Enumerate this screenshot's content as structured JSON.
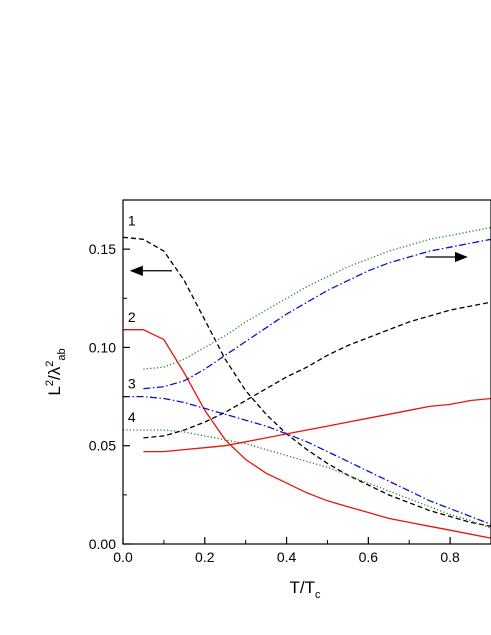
{
  "chart_data": {
    "type": "line",
    "xlabel": {
      "main": "T/T",
      "sub": "c"
    },
    "ylabel": {
      "l": "L",
      "sup1": "2",
      "slash": "/λ",
      "sup2": "2",
      "sub": "ab"
    },
    "xlim": [
      0.0,
      0.9
    ],
    "ylim": [
      0.0,
      0.175
    ],
    "x_ticks": [
      0.0,
      0.2,
      0.4,
      0.6,
      0.8
    ],
    "x_tick_labels": [
      "0.0",
      "0.2",
      "0.4",
      "0.6",
      "0.8"
    ],
    "y_ticks": [
      0.0,
      0.05,
      0.1,
      0.15
    ],
    "y_tick_labels": [
      "0.00",
      "0.05",
      "0.10",
      "0.15"
    ],
    "curve_labels": [
      {
        "text": "1",
        "x": 0.012,
        "y": 0.162
      },
      {
        "text": "2",
        "x": 0.012,
        "y": 0.113
      },
      {
        "text": "3",
        "x": 0.012,
        "y": 0.079
      },
      {
        "text": "4",
        "x": 0.012,
        "y": 0.062
      }
    ],
    "arrows": [
      {
        "name": "left-axis-arrow",
        "direction": "left",
        "x_from": 0.12,
        "x_to": 0.02,
        "y": 0.139
      },
      {
        "name": "right-axis-arrow",
        "direction": "right",
        "x_from": 0.74,
        "x_to": 0.84,
        "y": 0.146
      }
    ],
    "series": [
      {
        "style": "dashed",
        "color": "#000000",
        "x": [
          0.0,
          0.05,
          0.1,
          0.15,
          0.2,
          0.25,
          0.3,
          0.35,
          0.4,
          0.45,
          0.5,
          0.55,
          0.6,
          0.65,
          0.7,
          0.75,
          0.8,
          0.85,
          0.9
        ],
        "y": [
          0.156,
          0.155,
          0.149,
          0.134,
          0.114,
          0.094,
          0.078,
          0.066,
          0.056,
          0.048,
          0.041,
          0.035,
          0.03,
          0.025,
          0.021,
          0.017,
          0.014,
          0.011,
          0.009
        ]
      },
      {
        "style": "solid",
        "color": "#e8150d",
        "x": [
          0.0,
          0.05,
          0.1,
          0.15,
          0.2,
          0.25,
          0.3,
          0.35,
          0.4,
          0.45,
          0.5,
          0.55,
          0.6,
          0.65,
          0.7,
          0.75,
          0.8,
          0.85,
          0.9
        ],
        "y": [
          0.109,
          0.109,
          0.104,
          0.087,
          0.068,
          0.053,
          0.043,
          0.036,
          0.031,
          0.026,
          0.022,
          0.019,
          0.016,
          0.013,
          0.011,
          0.009,
          0.007,
          0.005,
          0.003
        ]
      },
      {
        "style": "dashdot",
        "color": "#1010cc",
        "x": [
          0.0,
          0.05,
          0.1,
          0.15,
          0.2,
          0.25,
          0.3,
          0.35,
          0.4,
          0.45,
          0.5,
          0.55,
          0.6,
          0.65,
          0.7,
          0.75,
          0.8,
          0.85,
          0.9
        ],
        "y": [
          0.075,
          0.075,
          0.074,
          0.072,
          0.069,
          0.066,
          0.063,
          0.06,
          0.056,
          0.052,
          0.047,
          0.042,
          0.037,
          0.032,
          0.027,
          0.022,
          0.018,
          0.014,
          0.01
        ]
      },
      {
        "style": "dotted",
        "color": "#1a8a1a",
        "x": [
          0.0,
          0.05,
          0.1,
          0.15,
          0.2,
          0.25,
          0.3,
          0.35,
          0.4,
          0.45,
          0.5,
          0.55,
          0.6,
          0.65,
          0.7,
          0.75,
          0.8,
          0.85,
          0.9
        ],
        "y": [
          0.058,
          0.058,
          0.058,
          0.057,
          0.055,
          0.053,
          0.051,
          0.048,
          0.045,
          0.042,
          0.039,
          0.035,
          0.031,
          0.027,
          0.023,
          0.019,
          0.015,
          0.012,
          0.008
        ]
      },
      {
        "style": "dotted",
        "color": "#1a8a1a",
        "x": [
          0.05,
          0.1,
          0.15,
          0.2,
          0.25,
          0.3,
          0.35,
          0.4,
          0.45,
          0.5,
          0.55,
          0.6,
          0.65,
          0.7,
          0.75,
          0.8,
          0.85,
          0.9
        ],
        "y": [
          0.089,
          0.09,
          0.094,
          0.1,
          0.106,
          0.113,
          0.119,
          0.125,
          0.131,
          0.136,
          0.141,
          0.145,
          0.149,
          0.152,
          0.155,
          0.157,
          0.159,
          0.161
        ]
      },
      {
        "style": "dashdot",
        "color": "#1010cc",
        "x": [
          0.05,
          0.1,
          0.15,
          0.2,
          0.25,
          0.3,
          0.35,
          0.4,
          0.45,
          0.5,
          0.55,
          0.6,
          0.65,
          0.7,
          0.75,
          0.8,
          0.85,
          0.9
        ],
        "y": [
          0.079,
          0.08,
          0.083,
          0.089,
          0.096,
          0.103,
          0.11,
          0.117,
          0.123,
          0.129,
          0.134,
          0.139,
          0.143,
          0.146,
          0.149,
          0.151,
          0.153,
          0.155
        ]
      },
      {
        "style": "dashed",
        "color": "#000000",
        "x": [
          0.05,
          0.1,
          0.15,
          0.2,
          0.25,
          0.3,
          0.35,
          0.4,
          0.45,
          0.5,
          0.55,
          0.6,
          0.65,
          0.7,
          0.75,
          0.8,
          0.85,
          0.9
        ],
        "y": [
          0.054,
          0.055,
          0.058,
          0.062,
          0.067,
          0.073,
          0.079,
          0.085,
          0.09,
          0.096,
          0.101,
          0.105,
          0.109,
          0.113,
          0.116,
          0.119,
          0.121,
          0.123
        ]
      },
      {
        "style": "solid",
        "color": "#e8150d",
        "x": [
          0.05,
          0.1,
          0.15,
          0.2,
          0.25,
          0.3,
          0.35,
          0.4,
          0.45,
          0.5,
          0.55,
          0.6,
          0.65,
          0.7,
          0.75,
          0.8,
          0.85,
          0.9
        ],
        "y": [
          0.047,
          0.047,
          0.048,
          0.049,
          0.05,
          0.052,
          0.054,
          0.056,
          0.058,
          0.06,
          0.062,
          0.064,
          0.066,
          0.068,
          0.07,
          0.071,
          0.073,
          0.074
        ]
      }
    ]
  }
}
